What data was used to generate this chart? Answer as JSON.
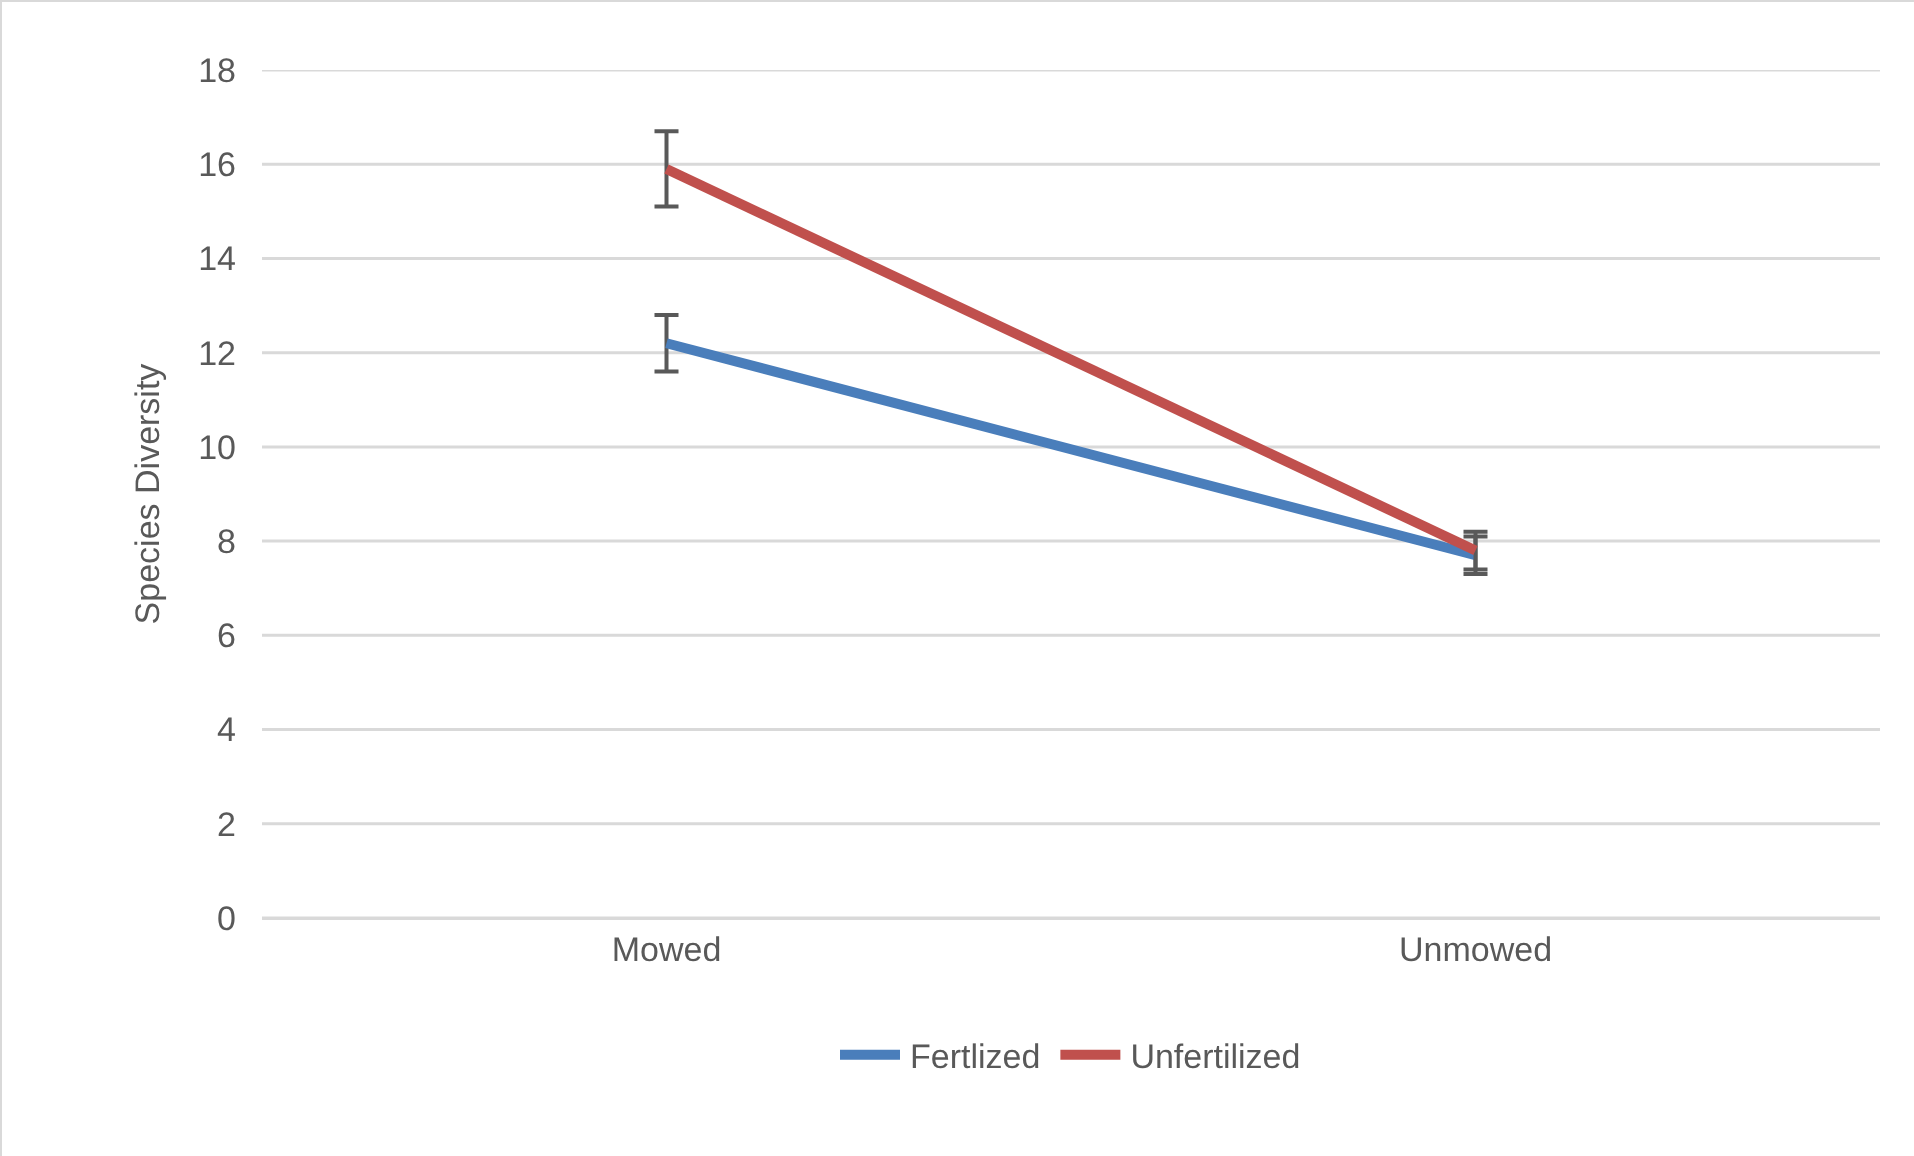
{
  "chart_data": {
    "type": "line",
    "ylabel": "Species Diversity",
    "categories": [
      "Mowed",
      "Unmowed"
    ],
    "series": [
      {
        "name": "Fertlized",
        "color": "#4a7ebb",
        "values": [
          12.2,
          7.7
        ],
        "errors": [
          0.6,
          0.4
        ]
      },
      {
        "name": "Unfertilized",
        "color": "#c0504d",
        "values": [
          15.9,
          7.8
        ],
        "errors": [
          0.8,
          0.4
        ]
      }
    ],
    "ylim": [
      0,
      18
    ],
    "yticks": [
      0,
      2,
      4,
      6,
      8,
      10,
      12,
      14,
      16,
      18
    ],
    "grid": "y",
    "legend": "bottom",
    "line_style": "solid"
  }
}
